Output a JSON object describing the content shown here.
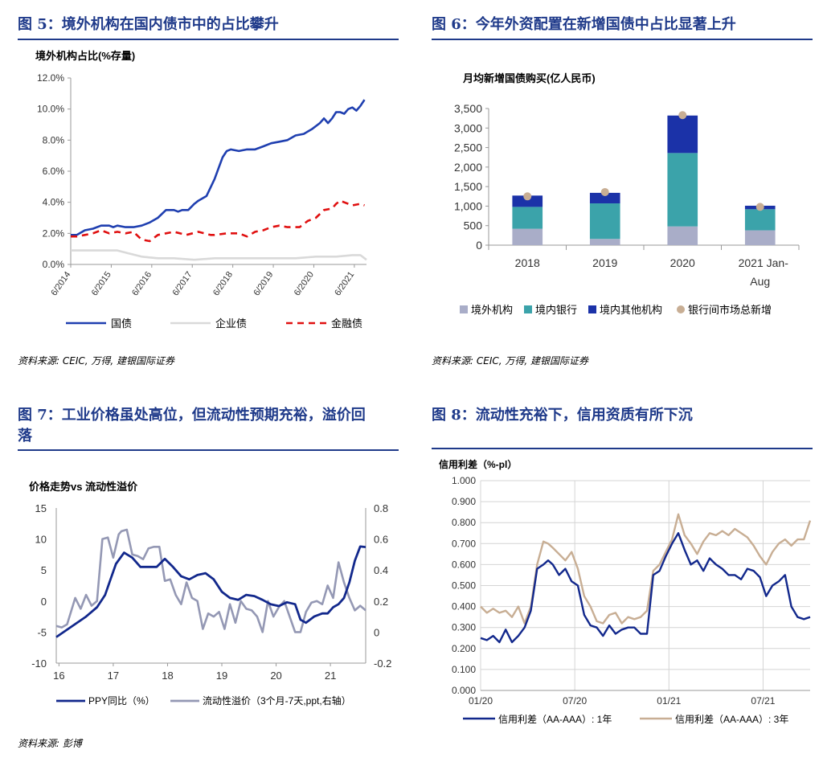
{
  "panels": {
    "p5": {
      "title": "图 5：境外机构在国内债市中的占比攀升",
      "source": "资料来源: CEIC, 万得, 建银国际证券"
    },
    "p6": {
      "title": "图 6：今年外资配置在新增国债中占比显著上升",
      "source": "资料来源: CEIC, 万得, 建银国际证券"
    },
    "p7": {
      "title_line1": "图 7：工业价格虽处高位，但流动性预期充裕，溢价回",
      "title_line2": "落",
      "source": "资料来源: 彭博"
    },
    "p8": {
      "title": "图 8：流动性充裕下，信用资质有所下沉"
    }
  },
  "chart_data": [
    {
      "id": "fig5",
      "type": "line",
      "title": "境外机构占比(%存量)",
      "ylim": [
        0,
        12
      ],
      "y_ticks": [
        "0.0%",
        "2.0%",
        "4.0%",
        "6.0%",
        "8.0%",
        "10.0%",
        "12.0%"
      ],
      "x_ticks": [
        "6/2014",
        "6/2015",
        "6/2016",
        "6/2017",
        "6/2018",
        "6/2019",
        "6/2020",
        "6/2021"
      ],
      "x_range": [
        2014.45,
        2021.75
      ],
      "series": [
        {
          "name": "国债",
          "color": "#1f3fb0",
          "style": "solid",
          "x": [
            2014.45,
            2014.6,
            2014.8,
            2015.0,
            2015.2,
            2015.4,
            2015.5,
            2015.6,
            2015.8,
            2016.0,
            2016.2,
            2016.4,
            2016.6,
            2016.8,
            2017.0,
            2017.1,
            2017.2,
            2017.35,
            2017.5,
            2017.6,
            2017.8,
            2018.0,
            2018.1,
            2018.2,
            2018.3,
            2018.4,
            2018.6,
            2018.8,
            2019.0,
            2019.2,
            2019.4,
            2019.6,
            2019.8,
            2020.0,
            2020.2,
            2020.4,
            2020.6,
            2020.7,
            2020.8,
            2020.9,
            2021.0,
            2021.1,
            2021.2,
            2021.3,
            2021.4,
            2021.5,
            2021.6,
            2021.7
          ],
          "y": [
            1.9,
            1.9,
            2.2,
            2.3,
            2.5,
            2.5,
            2.4,
            2.5,
            2.4,
            2.4,
            2.5,
            2.7,
            3.0,
            3.5,
            3.5,
            3.4,
            3.5,
            3.5,
            3.9,
            4.1,
            4.4,
            5.5,
            6.2,
            6.9,
            7.3,
            7.4,
            7.3,
            7.4,
            7.4,
            7.6,
            7.8,
            7.9,
            8.0,
            8.3,
            8.4,
            8.7,
            9.1,
            9.4,
            9.1,
            9.4,
            9.8,
            9.8,
            9.7,
            10.0,
            10.1,
            9.9,
            10.2,
            10.6
          ]
        },
        {
          "name": "企业债",
          "color": "#d9d9d9",
          "style": "solid",
          "x": [
            2014.45,
            2014.8,
            2015.0,
            2015.3,
            2015.6,
            2015.9,
            2016.2,
            2016.6,
            2017.0,
            2017.5,
            2018.0,
            2018.5,
            2019.0,
            2019.5,
            2020.0,
            2020.5,
            2021.0,
            2021.4,
            2021.6,
            2021.75
          ],
          "y": [
            0.9,
            0.9,
            0.9,
            0.9,
            0.9,
            0.7,
            0.5,
            0.4,
            0.4,
            0.3,
            0.4,
            0.4,
            0.4,
            0.4,
            0.4,
            0.5,
            0.5,
            0.6,
            0.6,
            0.3
          ]
        },
        {
          "name": "金融债",
          "color": "#e01010",
          "style": "dashed",
          "x": [
            2014.45,
            2014.6,
            2014.8,
            2015.0,
            2015.2,
            2015.4,
            2015.6,
            2015.8,
            2016.0,
            2016.2,
            2016.4,
            2016.6,
            2016.8,
            2017.0,
            2017.3,
            2017.6,
            2017.9,
            2018.0,
            2018.3,
            2018.6,
            2018.8,
            2019.0,
            2019.2,
            2019.4,
            2019.6,
            2019.8,
            2020.0,
            2020.1,
            2020.3,
            2020.5,
            2020.7,
            2020.9,
            2021.0,
            2021.1,
            2021.2,
            2021.4,
            2021.6,
            2021.7
          ],
          "y": [
            1.8,
            1.8,
            1.9,
            2.0,
            2.2,
            2.0,
            2.1,
            2.0,
            2.1,
            1.6,
            1.5,
            1.9,
            2.0,
            2.1,
            1.9,
            2.1,
            1.9,
            1.9,
            2.0,
            2.0,
            1.8,
            2.1,
            2.2,
            2.4,
            2.5,
            2.4,
            2.4,
            2.4,
            2.8,
            3.0,
            3.5,
            3.6,
            3.9,
            4.1,
            4.0,
            3.8,
            3.9,
            3.8
          ]
        }
      ]
    },
    {
      "id": "fig6",
      "type": "bar",
      "title": "月均新增国债购买(亿人民币)",
      "ylim": [
        0,
        3500
      ],
      "y_ticks": [
        "0",
        "500",
        "1,000",
        "1,500",
        "2,000",
        "2,500",
        "3,000",
        "3,500"
      ],
      "categories": [
        "2018",
        "2019",
        "2020",
        "2021 Jan-Aug"
      ],
      "series": [
        {
          "name": "境外机构",
          "color": "#a9adc8",
          "values": [
            420,
            160,
            480,
            380
          ]
        },
        {
          "name": "境内银行",
          "color": "#3ba3aa",
          "values": [
            560,
            910,
            1880,
            540
          ]
        },
        {
          "name": "境内其他机构",
          "color": "#1b32a8",
          "values": [
            290,
            270,
            960,
            90
          ]
        },
        {
          "name": "银行间市场总新增",
          "color": "#c8ae94",
          "marker": "dot",
          "values": [
            1250,
            1360,
            3330,
            980
          ]
        }
      ]
    },
    {
      "id": "fig7",
      "type": "line",
      "title": "价格走势vs 流动性溢价",
      "ylim_left": [
        -10,
        15
      ],
      "ylim_right": [
        -0.2,
        0.8
      ],
      "y_ticks_left": [
        "15",
        "10",
        "5",
        "0",
        "-5",
        "-10"
      ],
      "y_ticks_right": [
        "0.8",
        "0.6",
        "0.4",
        "0.2",
        "0",
        "-0.2"
      ],
      "x_ticks": [
        "16",
        "17",
        "18",
        "19",
        "20",
        "21"
      ],
      "x_range": [
        15.95,
        21.65
      ],
      "series": [
        {
          "name": "PPY同比（%）",
          "axis": "left",
          "color": "#12288c",
          "x": [
            15.95,
            16.2,
            16.5,
            16.7,
            16.85,
            16.95,
            17.05,
            17.2,
            17.35,
            17.5,
            17.65,
            17.8,
            17.95,
            18.1,
            18.25,
            18.4,
            18.55,
            18.7,
            18.85,
            19.0,
            19.15,
            19.3,
            19.45,
            19.6,
            19.75,
            19.9,
            20.05,
            20.2,
            20.35,
            20.45,
            20.55,
            20.7,
            20.85,
            20.95,
            21.05,
            21.15,
            21.25,
            21.35,
            21.45,
            21.55,
            21.65
          ],
          "y": [
            -5.8,
            -4.3,
            -2.5,
            -1.0,
            1.0,
            3.5,
            6.0,
            7.8,
            7.0,
            5.5,
            5.5,
            5.5,
            6.8,
            5.5,
            4.0,
            3.5,
            4.2,
            4.5,
            3.5,
            1.5,
            0.5,
            0.2,
            1.0,
            0.8,
            0.2,
            -0.5,
            -0.8,
            -0.2,
            -0.5,
            -3.0,
            -3.5,
            -2.5,
            -2.0,
            -2.0,
            -1.0,
            -0.5,
            0.5,
            3.0,
            6.5,
            8.8,
            8.7
          ]
        },
        {
          "name": "流动性溢价（3个月-7天,ppt,右轴）",
          "axis": "right",
          "color": "#9498b4",
          "x": [
            15.95,
            16.05,
            16.15,
            16.3,
            16.4,
            16.5,
            16.6,
            16.7,
            16.8,
            16.9,
            17.0,
            17.1,
            17.15,
            17.25,
            17.35,
            17.45,
            17.55,
            17.65,
            17.75,
            17.85,
            17.95,
            18.05,
            18.15,
            18.25,
            18.35,
            18.45,
            18.55,
            18.65,
            18.75,
            18.85,
            18.95,
            19.05,
            19.15,
            19.25,
            19.35,
            19.45,
            19.55,
            19.65,
            19.75,
            19.85,
            19.95,
            20.05,
            20.15,
            20.25,
            20.35,
            20.45,
            20.55,
            20.65,
            20.75,
            20.85,
            20.95,
            21.05,
            21.15,
            21.25,
            21.35,
            21.45,
            21.55,
            21.65
          ],
          "y": [
            0.04,
            0.03,
            0.05,
            0.22,
            0.15,
            0.24,
            0.17,
            0.2,
            0.6,
            0.61,
            0.48,
            0.63,
            0.65,
            0.66,
            0.5,
            0.49,
            0.47,
            0.54,
            0.55,
            0.55,
            0.33,
            0.34,
            0.24,
            0.18,
            0.32,
            0.22,
            0.2,
            0.02,
            0.12,
            0.1,
            0.13,
            0.02,
            0.18,
            0.06,
            0.2,
            0.15,
            0.14,
            0.1,
            0.0,
            0.2,
            0.1,
            0.16,
            0.2,
            0.1,
            0.0,
            0.0,
            0.13,
            0.19,
            0.2,
            0.18,
            0.3,
            0.22,
            0.45,
            0.32,
            0.22,
            0.14,
            0.17,
            0.14
          ]
        }
      ]
    },
    {
      "id": "fig8",
      "type": "line",
      "title": "信用利差（%-pl）",
      "ylim": [
        0,
        1
      ],
      "y_ticks": [
        "0.000",
        "0.100",
        "0.200",
        "0.300",
        "0.400",
        "0.500",
        "0.600",
        "0.700",
        "0.800",
        "0.900",
        "1.000"
      ],
      "x_ticks": [
        "01/20",
        "07/20",
        "01/21",
        "07/21"
      ],
      "x_range": [
        0,
        21
      ],
      "series": [
        {
          "name": "信用利差（AA-AAA）: 1年",
          "color": "#12288c",
          "x": [
            0,
            0.4,
            0.8,
            1.2,
            1.6,
            2.0,
            2.4,
            2.8,
            3.2,
            3.6,
            4.0,
            4.3,
            4.6,
            5.0,
            5.4,
            5.8,
            6.2,
            6.6,
            7.0,
            7.4,
            7.8,
            8.2,
            8.6,
            9.0,
            9.4,
            9.8,
            10.2,
            10.6,
            11.0,
            11.4,
            11.8,
            12.2,
            12.6,
            13.0,
            13.4,
            13.8,
            14.2,
            14.6,
            15.0,
            15.4,
            15.8,
            16.2,
            16.6,
            17.0,
            17.4,
            17.8,
            18.2,
            18.6,
            19.0,
            19.4,
            19.8,
            20.2,
            20.6,
            21.0
          ],
          "y": [
            0.25,
            0.24,
            0.26,
            0.23,
            0.29,
            0.23,
            0.26,
            0.3,
            0.38,
            0.58,
            0.6,
            0.62,
            0.6,
            0.55,
            0.58,
            0.52,
            0.5,
            0.36,
            0.31,
            0.3,
            0.26,
            0.31,
            0.27,
            0.29,
            0.3,
            0.3,
            0.27,
            0.27,
            0.55,
            0.57,
            0.64,
            0.7,
            0.75,
            0.67,
            0.6,
            0.62,
            0.57,
            0.63,
            0.6,
            0.58,
            0.55,
            0.55,
            0.53,
            0.58,
            0.57,
            0.54,
            0.45,
            0.5,
            0.52,
            0.55,
            0.4,
            0.35,
            0.34,
            0.35
          ]
        },
        {
          "name": "信用利差（AA-AAA）: 3年",
          "color": "#c8ae94",
          "x": [
            0,
            0.4,
            0.8,
            1.2,
            1.6,
            2.0,
            2.4,
            2.8,
            3.2,
            3.6,
            4.0,
            4.3,
            4.6,
            5.0,
            5.4,
            5.8,
            6.2,
            6.6,
            7.0,
            7.4,
            7.8,
            8.2,
            8.6,
            9.0,
            9.4,
            9.8,
            10.2,
            10.6,
            11.0,
            11.4,
            11.8,
            12.2,
            12.6,
            13.0,
            13.4,
            13.8,
            14.2,
            14.6,
            15.0,
            15.4,
            15.8,
            16.2,
            16.6,
            17.0,
            17.4,
            17.8,
            18.2,
            18.6,
            19.0,
            19.4,
            19.8,
            20.2,
            20.6,
            21.0
          ],
          "y": [
            0.4,
            0.37,
            0.39,
            0.37,
            0.38,
            0.35,
            0.4,
            0.32,
            0.4,
            0.6,
            0.71,
            0.7,
            0.68,
            0.65,
            0.62,
            0.66,
            0.58,
            0.45,
            0.4,
            0.33,
            0.32,
            0.36,
            0.37,
            0.32,
            0.35,
            0.34,
            0.35,
            0.38,
            0.57,
            0.6,
            0.66,
            0.72,
            0.84,
            0.74,
            0.7,
            0.65,
            0.71,
            0.75,
            0.74,
            0.76,
            0.74,
            0.77,
            0.75,
            0.73,
            0.69,
            0.64,
            0.6,
            0.66,
            0.7,
            0.72,
            0.69,
            0.72,
            0.72,
            0.81
          ]
        }
      ]
    }
  ]
}
